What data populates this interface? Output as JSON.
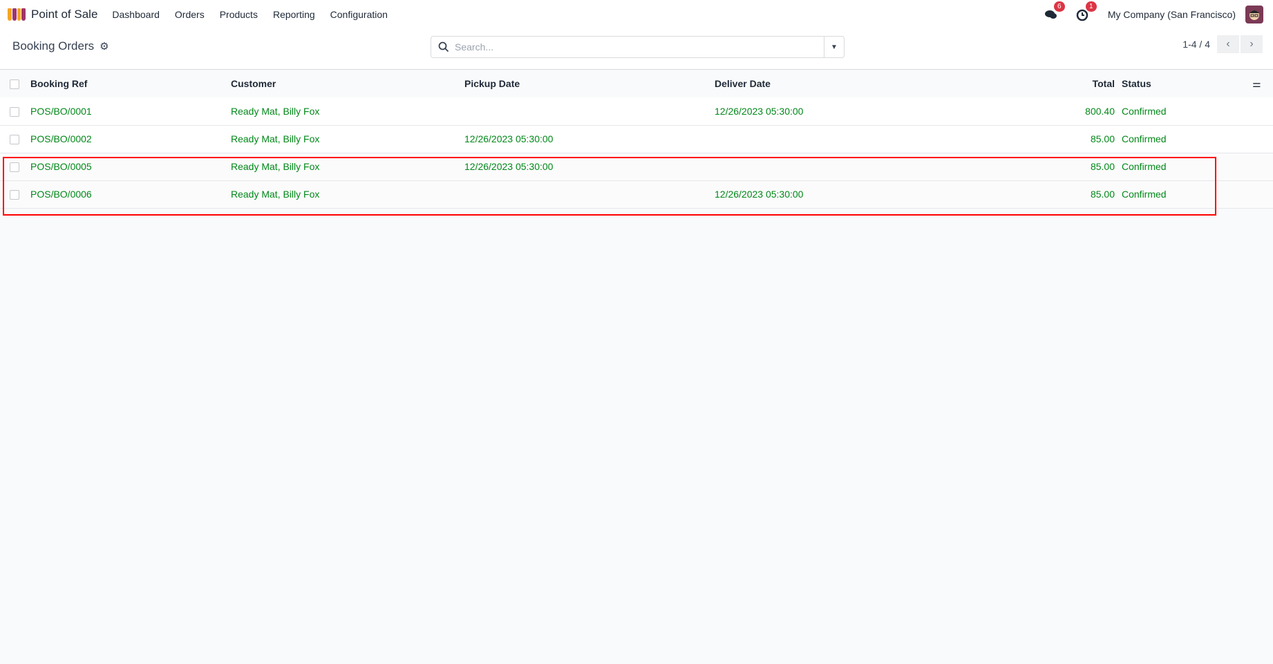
{
  "app": {
    "name": "Point of Sale",
    "menu": [
      "Dashboard",
      "Orders",
      "Products",
      "Reporting",
      "Configuration"
    ]
  },
  "systray": {
    "messages_count": "6",
    "activities_count": "1",
    "company": "My Company (San Francisco)"
  },
  "control_panel": {
    "title": "Booking Orders",
    "search_placeholder": "Search...",
    "pager": "1-4 / 4"
  },
  "table": {
    "headers": {
      "ref": "Booking Ref",
      "customer": "Customer",
      "pickup": "Pickup Date",
      "deliver": "Deliver Date",
      "total": "Total",
      "status": "Status"
    },
    "rows": [
      {
        "ref": "POS/BO/0001",
        "customer": "Ready Mat, Billy Fox",
        "pickup": "",
        "deliver": "12/26/2023 05:30:00",
        "total": "800.40",
        "status": "Confirmed"
      },
      {
        "ref": "POS/BO/0002",
        "customer": "Ready Mat, Billy Fox",
        "pickup": "12/26/2023 05:30:00",
        "deliver": "",
        "total": "85.00",
        "status": "Confirmed"
      },
      {
        "ref": "POS/BO/0005",
        "customer": "Ready Mat, Billy Fox",
        "pickup": "12/26/2023 05:30:00",
        "deliver": "",
        "total": "85.00",
        "status": "Confirmed"
      },
      {
        "ref": "POS/BO/0006",
        "customer": "Ready Mat, Billy Fox",
        "pickup": "",
        "deliver": "12/26/2023 05:30:00",
        "total": "85.00",
        "status": "Confirmed"
      }
    ]
  },
  "colors": {
    "row_text": "#008818",
    "highlight": "#ff0000",
    "badge": "#dc3545"
  }
}
